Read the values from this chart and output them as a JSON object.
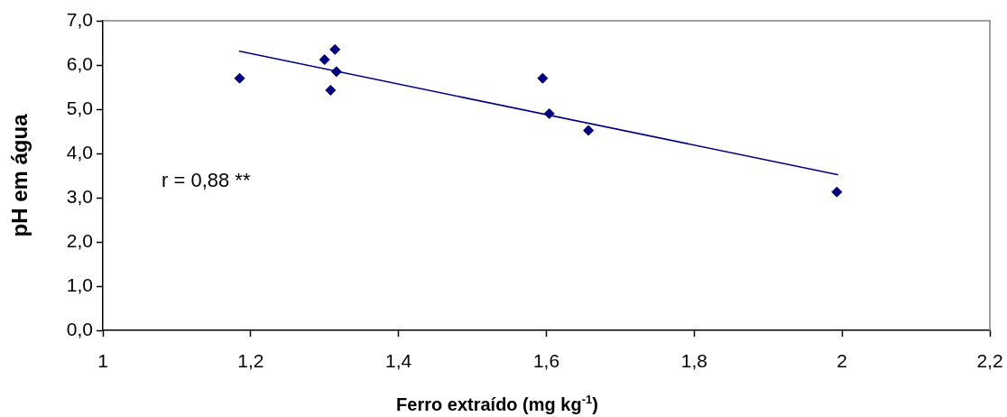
{
  "chart_data": {
    "type": "scatter",
    "xlabel": "Ferro extraído (mg kg$^{-1}$)",
    "ylabel": "pH em água",
    "annotations": [
      "r = 0,88 **"
    ],
    "xlim": [
      1,
      2.2
    ],
    "xticks": [
      1,
      {
        "value": 1.2,
        "label": "1,2"
      },
      {
        "value": 1.4,
        "label": "1,4"
      },
      {
        "value": 1.6,
        "label": "1,6"
      },
      {
        "value": 1.8,
        "label": "1,8"
      },
      2,
      {
        "value": 2.2,
        "label": "2,2"
      }
    ],
    "ylim": [
      0,
      7
    ],
    "yticks": [
      {
        "value": 0,
        "label": "0,0"
      },
      {
        "value": 1,
        "label": "1,0"
      },
      {
        "value": 2,
        "label": "2,0"
      },
      {
        "value": 3,
        "label": "3,0"
      },
      {
        "value": 4,
        "label": "4,0"
      },
      {
        "value": 5,
        "label": "5,0"
      },
      {
        "value": 6,
        "label": "6,0"
      },
      {
        "value": 7,
        "label": "7,0"
      }
    ],
    "marker": "diamond",
    "series": [
      {
        "color": "#000080",
        "x": [
          1.185,
          1.3,
          1.314,
          1.316,
          1.308,
          1.595,
          1.604,
          1.657,
          1.993
        ],
        "values": [
          5.7,
          6.12,
          6.35,
          5.85,
          5.43,
          5.7,
          4.9,
          4.52,
          3.13
        ]
      },
      {
        "type": "line",
        "color": "#000080",
        "marker": "none",
        "x": [
          1.185,
          1.994
        ],
        "values": [
          6.31,
          3.52
        ]
      }
    ]
  }
}
